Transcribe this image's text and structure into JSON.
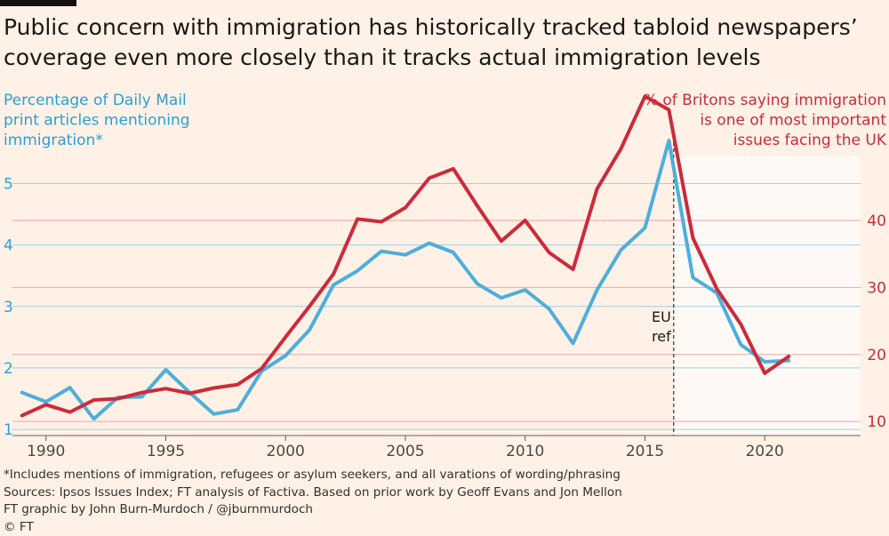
{
  "title_lines": [
    "Public concern with immigration has historically tracked tabloid newspapers’",
    "coverage even more closely than it tracks actual immigration levels"
  ],
  "footer": {
    "note": "*Includes mentions of immigration, refugees or asylum seekers, and all varations of wording/phrasing",
    "sources": "Sources: Ipsos Issues Index; FT analysis of Factiva. Based on prior work by Geoff Evans and Jon Mellon",
    "credit": "FT graphic by John Burn-Murdoch / @jburnmurdoch",
    "copyright": "© FT"
  },
  "chart_data": {
    "type": "line",
    "title": "Public concern with immigration has historically tracked tabloid newspapers’ coverage even more closely than it tracks actual immigration levels",
    "x": [
      1989,
      1990,
      1991,
      1992,
      1993,
      1994,
      1995,
      1996,
      1997,
      1998,
      1999,
      2000,
      2001,
      2002,
      2003,
      2004,
      2005,
      2006,
      2007,
      2008,
      2009,
      2010,
      2011,
      2012,
      2013,
      2014,
      2015,
      2016,
      2017,
      2018,
      2019,
      2020,
      2021
    ],
    "xlim": [
      1988.6,
      2024
    ],
    "xticks": [
      1990,
      1995,
      2000,
      2005,
      2010,
      2015,
      2020
    ],
    "left_axis": {
      "label_lines": [
        "Percentage of Daily Mail",
        "print articles mentioning",
        "immigration*"
      ],
      "ylim": [
        0.9,
        5.6
      ],
      "ticks": [
        1,
        2,
        3,
        4,
        5
      ]
    },
    "right_axis": {
      "label_lines": [
        "% of Britons saying immigration",
        "is one of most important",
        "issues facing the UK"
      ],
      "ylim": [
        7.9,
        51
      ],
      "ticks": [
        10,
        20,
        30,
        40
      ]
    },
    "series": [
      {
        "name": "Percentage of Daily Mail print articles mentioning immigration*",
        "axis": "left",
        "color": "#4eaedb",
        "values": [
          1.6,
          1.45,
          1.68,
          1.17,
          1.52,
          1.53,
          1.97,
          1.6,
          1.25,
          1.32,
          1.95,
          2.2,
          2.62,
          3.35,
          3.58,
          3.9,
          3.84,
          4.03,
          3.88,
          3.37,
          3.14,
          3.27,
          2.96,
          2.4,
          3.27,
          3.92,
          4.28,
          5.7,
          3.47,
          3.22,
          2.38,
          2.1,
          2.12
        ]
      },
      {
        "name": "% of Britons saying immigration is one of most important issues facing the UK",
        "axis": "right",
        "color": "#cc2a3b",
        "values": [
          10.9,
          12.5,
          11.4,
          13.2,
          13.4,
          14.3,
          14.9,
          14.2,
          15.0,
          15.5,
          17.9,
          22.6,
          27.2,
          32.0,
          40.2,
          39.8,
          41.9,
          46.3,
          47.7,
          42.2,
          36.9,
          40.0,
          35.2,
          32.7,
          44.7,
          50.7,
          58.5,
          56.5,
          37.4,
          29.8,
          24.5,
          17.2,
          19.7
        ]
      }
    ],
    "annotation": {
      "year": 2016.2,
      "label_lines": [
        "EU",
        "ref"
      ]
    },
    "colors": {
      "background": "#fff1e5",
      "highlight_band": "#fff9f5",
      "left_grid": "#9fd0ea",
      "right_grid": "#f1a5a9",
      "left_axis_text": "#2a9fd8",
      "right_axis_text": "#cc2a3b"
    }
  }
}
